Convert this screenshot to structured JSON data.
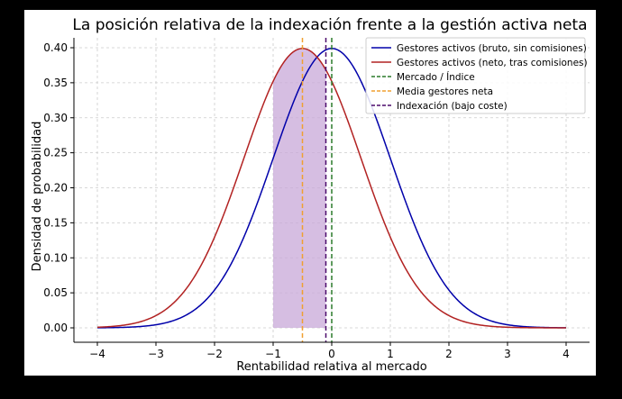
{
  "chart_data": {
    "type": "line",
    "title": "La posición relativa de la indexación frente a la gestión activa neta",
    "xlabel": "Rentabilidad relativa al mercado",
    "ylabel": "Densidad de probabilidad",
    "xlim": [
      -4,
      4
    ],
    "ylim": [
      0,
      0.4
    ],
    "x_ticks": [
      -4,
      -3,
      -2,
      -1,
      0,
      1,
      2,
      3,
      4
    ],
    "x_tick_labels": [
      "−4",
      "−3",
      "−2",
      "−1",
      "0",
      "1",
      "2",
      "3",
      "4"
    ],
    "y_ticks": [
      0,
      0.05,
      0.1,
      0.15,
      0.2,
      0.25,
      0.3,
      0.35,
      0.4
    ],
    "y_tick_labels": [
      "0.00",
      "0.05",
      "0.10",
      "0.15",
      "0.20",
      "0.25",
      "0.30",
      "0.35",
      "0.40"
    ],
    "grid": true,
    "legend_position": "top-right",
    "series": [
      {
        "name": "Gestores activos (bruto, sin comisiones)",
        "kind": "normal-density",
        "mean": 0,
        "std": 1,
        "color": "#0000aa"
      },
      {
        "name": "Gestores activos (neto, tras comisiones)",
        "kind": "normal-density",
        "mean": -0.5,
        "std": 1,
        "color": "#b22222"
      },
      {
        "name": "Mercado / Índice",
        "kind": "vertical-line",
        "x": 0,
        "color": "#2a7a2a"
      },
      {
        "name": "Media gestores neta",
        "kind": "vertical-line",
        "x": -0.5,
        "color": "#f0a030"
      },
      {
        "name": "Indexación (bajo coste)",
        "kind": "vertical-line",
        "x": -0.1,
        "color": "#4b0a6b"
      }
    ],
    "shaded_region": {
      "x_from": -1,
      "x_to": -0.1,
      "under_series": "Gestores activos (neto, tras comisiones)",
      "color": "#c8a8d8"
    }
  }
}
